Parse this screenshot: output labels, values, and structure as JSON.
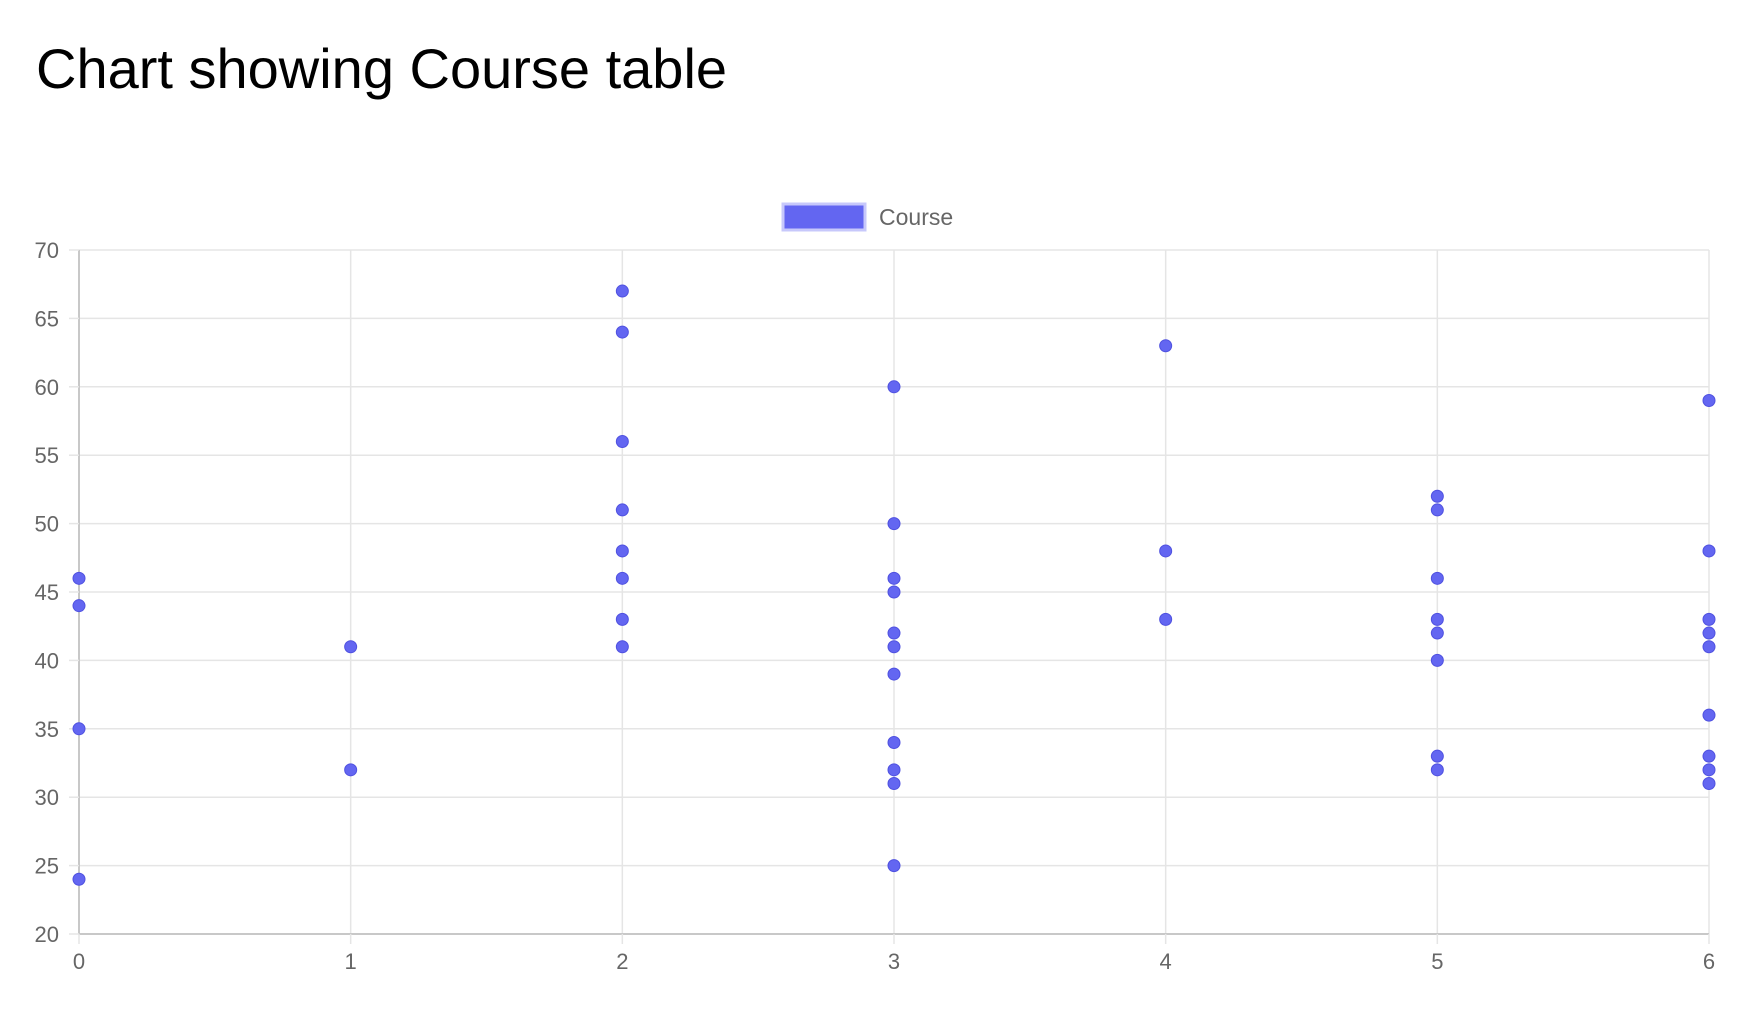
{
  "page": {
    "title": "Chart showing Course table"
  },
  "chart_data": {
    "type": "scatter",
    "title": "",
    "xlabel": "",
    "ylabel": "",
    "xlim": [
      0,
      6
    ],
    "ylim": [
      20,
      70
    ],
    "x_ticks": [
      "0",
      "1",
      "2",
      "3",
      "4",
      "5",
      "6"
    ],
    "y_ticks": [
      "20",
      "25",
      "30",
      "35",
      "40",
      "45",
      "50",
      "55",
      "60",
      "65",
      "70"
    ],
    "grid": true,
    "legend_position": "top-center",
    "colors": {
      "point": "#6366f1",
      "legend_swatch": "#6366f1",
      "grid": "#e5e5e5",
      "axis": "#c8c8c8",
      "text": "#666666"
    },
    "series": [
      {
        "name": "Course",
        "points": [
          {
            "x": 0,
            "y": 46
          },
          {
            "x": 0,
            "y": 44
          },
          {
            "x": 0,
            "y": 35
          },
          {
            "x": 0,
            "y": 24
          },
          {
            "x": 1,
            "y": 41
          },
          {
            "x": 1,
            "y": 32
          },
          {
            "x": 2,
            "y": 67
          },
          {
            "x": 2,
            "y": 64
          },
          {
            "x": 2,
            "y": 56
          },
          {
            "x": 2,
            "y": 51
          },
          {
            "x": 2,
            "y": 48
          },
          {
            "x": 2,
            "y": 46
          },
          {
            "x": 2,
            "y": 43
          },
          {
            "x": 2,
            "y": 41
          },
          {
            "x": 3,
            "y": 60
          },
          {
            "x": 3,
            "y": 50
          },
          {
            "x": 3,
            "y": 46
          },
          {
            "x": 3,
            "y": 45
          },
          {
            "x": 3,
            "y": 42
          },
          {
            "x": 3,
            "y": 41
          },
          {
            "x": 3,
            "y": 39
          },
          {
            "x": 3,
            "y": 34
          },
          {
            "x": 3,
            "y": 32
          },
          {
            "x": 3,
            "y": 31
          },
          {
            "x": 3,
            "y": 25
          },
          {
            "x": 4,
            "y": 63
          },
          {
            "x": 4,
            "y": 48
          },
          {
            "x": 4,
            "y": 43
          },
          {
            "x": 5,
            "y": 52
          },
          {
            "x": 5,
            "y": 51
          },
          {
            "x": 5,
            "y": 46
          },
          {
            "x": 5,
            "y": 43
          },
          {
            "x": 5,
            "y": 42
          },
          {
            "x": 5,
            "y": 40
          },
          {
            "x": 5,
            "y": 33
          },
          {
            "x": 5,
            "y": 32
          },
          {
            "x": 6,
            "y": 59
          },
          {
            "x": 6,
            "y": 48
          },
          {
            "x": 6,
            "y": 43
          },
          {
            "x": 6,
            "y": 42
          },
          {
            "x": 6,
            "y": 41
          },
          {
            "x": 6,
            "y": 36
          },
          {
            "x": 6,
            "y": 33
          },
          {
            "x": 6,
            "y": 32
          },
          {
            "x": 6,
            "y": 31
          }
        ]
      }
    ]
  }
}
